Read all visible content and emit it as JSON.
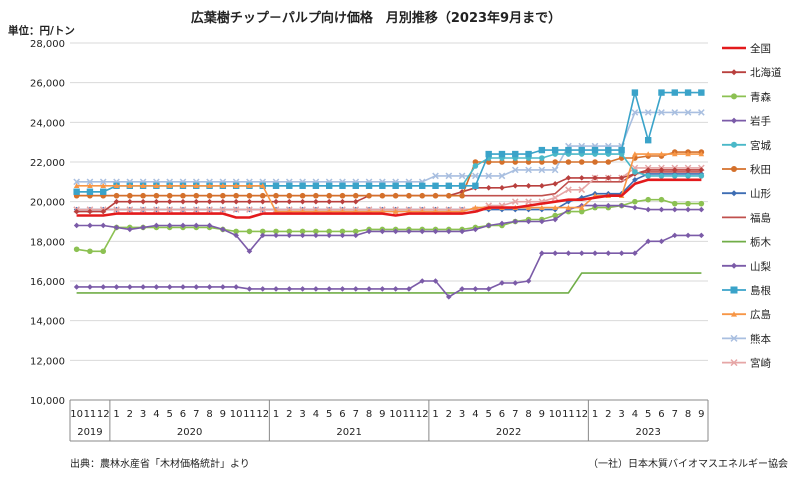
{
  "title": "広葉樹チップ－パルプ向け価格　月別推移（2023年9月まで）",
  "unit_label": "単位：円/トン",
  "source_left": "出典：農林水産省「木材価格統計」より",
  "source_right": "（一社）日本木質バイオマスエネルギー協会",
  "chart_data": {
    "type": "line",
    "title": "広葉樹チップ－パルプ向け価格　月別推移（2023年9月まで）",
    "ylabel": "単位：円/トン",
    "ylim": [
      10000,
      28000
    ],
    "yticks": [
      10000,
      12000,
      14000,
      16000,
      18000,
      20000,
      22000,
      24000,
      26000,
      28000
    ],
    "ytick_labels": [
      "10,000",
      "12,000",
      "14,000",
      "16,000",
      "18,000",
      "20,000",
      "22,000",
      "24,000",
      "26,000",
      "28,000"
    ],
    "grid": true,
    "legend_position": "right",
    "x_months": [
      "10",
      "11",
      "12",
      "1",
      "2",
      "3",
      "4",
      "5",
      "6",
      "7",
      "8",
      "9",
      "10",
      "11",
      "12",
      "1",
      "2",
      "3",
      "4",
      "5",
      "6",
      "7",
      "8",
      "9",
      "10",
      "11",
      "12",
      "1",
      "2",
      "3",
      "4",
      "5",
      "6",
      "7",
      "8",
      "9",
      "10",
      "11",
      "12",
      "1",
      "2",
      "3",
      "4",
      "5",
      "6",
      "7",
      "8",
      "9"
    ],
    "x_years": [
      {
        "label": "2019",
        "start": 0,
        "end": 2
      },
      {
        "label": "2020",
        "start": 3,
        "end": 14
      },
      {
        "label": "2021",
        "start": 15,
        "end": 26
      },
      {
        "label": "2022",
        "start": 27,
        "end": 38
      },
      {
        "label": "2023",
        "start": 39,
        "end": 47
      }
    ],
    "series": [
      {
        "name": "全国",
        "color": "#e31a1c",
        "marker": "none",
        "width": 2.6,
        "values": [
          19300,
          19300,
          19300,
          19400,
          19400,
          19400,
          19400,
          19400,
          19400,
          19400,
          19400,
          19400,
          19200,
          19200,
          19400,
          19400,
          19400,
          19400,
          19400,
          19400,
          19400,
          19400,
          19400,
          19400,
          19300,
          19400,
          19400,
          19400,
          19400,
          19400,
          19500,
          19700,
          19700,
          19700,
          19800,
          19900,
          20000,
          20100,
          20100,
          20200,
          20300,
          20300,
          20900,
          21100,
          21100,
          21100,
          21100,
          21100
        ]
      },
      {
        "name": "北海道",
        "color": "#b9403e",
        "marker": "diamond",
        "values": [
          19500,
          19500,
          19500,
          20000,
          20000,
          20000,
          20000,
          20000,
          20000,
          20000,
          20000,
          20000,
          20000,
          20000,
          20000,
          20000,
          20000,
          20000,
          20000,
          20000,
          20000,
          20000,
          20300,
          20300,
          20300,
          20300,
          20300,
          20300,
          20300,
          20500,
          20700,
          20700,
          20700,
          20800,
          20800,
          20800,
          20900,
          21200,
          21200,
          21200,
          21200,
          21200,
          21400,
          21600,
          21600,
          21600,
          21600,
          21600
        ]
      },
      {
        "name": "青森",
        "color": "#8cc152",
        "marker": "circle",
        "values": [
          17600,
          17500,
          17500,
          18700,
          18700,
          18700,
          18700,
          18700,
          18700,
          18700,
          18700,
          18600,
          18500,
          18500,
          18500,
          18500,
          18500,
          18500,
          18500,
          18500,
          18500,
          18500,
          18600,
          18600,
          18600,
          18600,
          18600,
          18600,
          18600,
          18600,
          18700,
          18800,
          18800,
          19000,
          19100,
          19100,
          19300,
          19500,
          19500,
          19700,
          19700,
          19800,
          20000,
          20100,
          20100,
          19900,
          19900,
          19900
        ]
      },
      {
        "name": "岩手",
        "color": "#7b5ba8",
        "marker": "diamond",
        "values": [
          18800,
          18800,
          18800,
          18700,
          18600,
          18700,
          18800,
          18800,
          18800,
          18800,
          18800,
          18600,
          18300,
          17500,
          18300,
          18300,
          18300,
          18300,
          18300,
          18300,
          18300,
          18300,
          18500,
          18500,
          18500,
          18500,
          18500,
          18500,
          18500,
          18500,
          18600,
          18800,
          18900,
          19000,
          19000,
          19000,
          19100,
          19600,
          19800,
          19800,
          19800,
          19800,
          19700,
          19600,
          19600,
          19600,
          19600,
          19600
        ]
      },
      {
        "name": "宮城",
        "color": "#4ab8c8",
        "marker": "circle",
        "values": [
          20500,
          20500,
          20500,
          20800,
          20800,
          20800,
          20800,
          20800,
          20800,
          20800,
          20800,
          20800,
          20800,
          20800,
          20800,
          20800,
          20800,
          20800,
          20800,
          20800,
          20800,
          20800,
          20800,
          20800,
          20800,
          20800,
          20800,
          20800,
          20800,
          20800,
          21800,
          22200,
          22200,
          22200,
          22200,
          22200,
          22400,
          22400,
          22400,
          22400,
          22400,
          22400,
          21500,
          21300,
          21300,
          21300,
          21300,
          21300
        ]
      },
      {
        "name": "秋田",
        "color": "#d4702b",
        "marker": "circle",
        "values": [
          20300,
          20300,
          20300,
          20300,
          20300,
          20300,
          20300,
          20300,
          20300,
          20300,
          20300,
          20300,
          20300,
          20300,
          20300,
          20300,
          20300,
          20300,
          20300,
          20300,
          20300,
          20300,
          20300,
          20300,
          20300,
          20300,
          20300,
          20300,
          20300,
          20300,
          22000,
          22000,
          22000,
          22000,
          22000,
          22000,
          22000,
          22000,
          22000,
          22000,
          22000,
          22200,
          22200,
          22300,
          22300,
          22500,
          22500,
          22500
        ]
      },
      {
        "name": "山形",
        "color": "#3d6db3",
        "marker": "diamond",
        "values": [
          19600,
          19600,
          19600,
          19600,
          19600,
          19600,
          19600,
          19600,
          19600,
          19600,
          19600,
          19600,
          19600,
          19600,
          19600,
          19600,
          19600,
          19600,
          19600,
          19600,
          19600,
          19600,
          19600,
          19600,
          19600,
          19600,
          19600,
          19600,
          19600,
          19600,
          19600,
          19600,
          19600,
          19600,
          19600,
          19600,
          19600,
          20000,
          20200,
          20400,
          20400,
          20400,
          21100,
          21400,
          21400,
          21400,
          21400,
          21400
        ]
      },
      {
        "name": "福島",
        "color": "#c0504d",
        "marker": "none",
        "values": [
          20300,
          20300,
          20300,
          20300,
          20300,
          20300,
          20300,
          20300,
          20300,
          20300,
          20300,
          20300,
          20300,
          20300,
          20300,
          20300,
          20300,
          20300,
          20300,
          20300,
          20300,
          20300,
          20300,
          20300,
          20300,
          20300,
          20300,
          20300,
          20300,
          20300,
          20300,
          20300,
          20300,
          20300,
          20300,
          20300,
          20400,
          21000,
          21000,
          21000,
          21000,
          21000,
          21400,
          21500,
          21500,
          21500,
          21500,
          21500
        ]
      },
      {
        "name": "栃木",
        "color": "#70ad47",
        "marker": "none",
        "values": [
          15400,
          15400,
          15400,
          15400,
          15400,
          15400,
          15400,
          15400,
          15400,
          15400,
          15400,
          15400,
          15400,
          15400,
          15400,
          15400,
          15400,
          15400,
          15400,
          15400,
          15400,
          15400,
          15400,
          15400,
          15400,
          15400,
          15400,
          15400,
          15400,
          15400,
          15400,
          15400,
          15400,
          15400,
          15400,
          15400,
          15400,
          15400,
          16400,
          16400,
          16400,
          16400,
          16400,
          16400,
          16400,
          16400,
          16400,
          16400
        ]
      },
      {
        "name": "山梨",
        "color": "#7b5ba8",
        "marker": "diamond",
        "values": [
          15700,
          15700,
          15700,
          15700,
          15700,
          15700,
          15700,
          15700,
          15700,
          15700,
          15700,
          15700,
          15700,
          15600,
          15600,
          15600,
          15600,
          15600,
          15600,
          15600,
          15600,
          15600,
          15600,
          15600,
          15600,
          15600,
          16000,
          16000,
          15200,
          15600,
          15600,
          15600,
          15900,
          15900,
          16000,
          17400,
          17400,
          17400,
          17400,
          17400,
          17400,
          17400,
          17400,
          18000,
          18000,
          18300,
          18300,
          18300
        ]
      },
      {
        "name": "島根",
        "color": "#3aa3c9",
        "marker": "square",
        "values": [
          20500,
          20500,
          20500,
          20800,
          20800,
          20800,
          20800,
          20800,
          20800,
          20800,
          20800,
          20800,
          20800,
          20800,
          20800,
          20800,
          20800,
          20800,
          20800,
          20800,
          20800,
          20800,
          20800,
          20800,
          20800,
          20800,
          20800,
          20800,
          20800,
          20800,
          20800,
          22400,
          22400,
          22400,
          22400,
          22600,
          22600,
          22600,
          22600,
          22600,
          22600,
          22600,
          25500,
          23100,
          25500,
          25500,
          25500,
          25500
        ]
      },
      {
        "name": "広島",
        "color": "#f79646",
        "marker": "triangle",
        "values": [
          20800,
          20800,
          20800,
          20800,
          20800,
          20800,
          20800,
          20800,
          20800,
          20800,
          20800,
          20800,
          20800,
          20800,
          20800,
          19500,
          19500,
          19500,
          19500,
          19500,
          19500,
          19500,
          19500,
          19500,
          19500,
          19500,
          19500,
          19500,
          19500,
          19500,
          19700,
          19700,
          19700,
          19700,
          19700,
          19700,
          19700,
          19700,
          19700,
          20300,
          20300,
          20300,
          22400,
          22400,
          22400,
          22400,
          22400,
          22400
        ]
      },
      {
        "name": "熊本",
        "color": "#a9bfe0",
        "marker": "x",
        "values": [
          21000,
          21000,
          21000,
          21000,
          21000,
          21000,
          21000,
          21000,
          21000,
          21000,
          21000,
          21000,
          21000,
          21000,
          21000,
          21000,
          21000,
          21000,
          21000,
          21000,
          21000,
          21000,
          21000,
          21000,
          21000,
          21000,
          21000,
          21300,
          21300,
          21300,
          21300,
          21300,
          21300,
          21600,
          21600,
          21600,
          21600,
          22800,
          22800,
          22800,
          22800,
          22800,
          24500,
          24500,
          24500,
          24500,
          24500,
          24500
        ]
      },
      {
        "name": "宮崎",
        "color": "#e6a6a6",
        "marker": "x",
        "values": [
          19600,
          19600,
          19600,
          19600,
          19600,
          19600,
          19600,
          19600,
          19600,
          19600,
          19600,
          19600,
          19600,
          19600,
          19600,
          19600,
          19600,
          19600,
          19600,
          19600,
          19600,
          19600,
          19600,
          19600,
          19600,
          19600,
          19600,
          19600,
          19600,
          19600,
          19600,
          19800,
          19800,
          20000,
          20000,
          20000,
          20200,
          20600,
          20600,
          21200,
          21200,
          21200,
          21700,
          21700,
          21700,
          21700,
          21700,
          21700
        ]
      }
    ]
  }
}
